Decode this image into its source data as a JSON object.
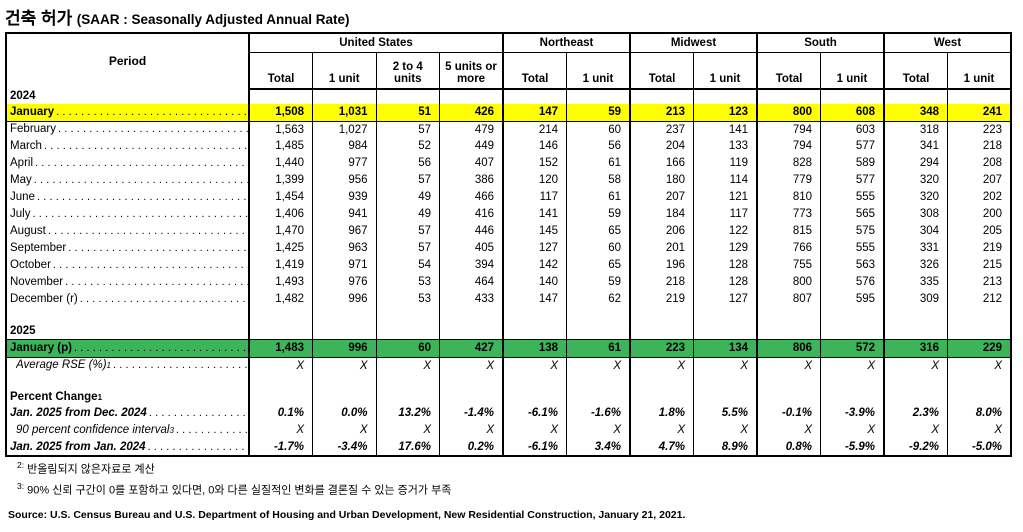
{
  "title": {
    "korean": "건축 허가",
    "english": "(SAAR : Seasonally Adjusted Annual Rate)"
  },
  "colors": {
    "highlight_yellow": "#FFFF00",
    "highlight_green": "#3CB45A"
  },
  "table": {
    "period_header": "Period",
    "groups": [
      {
        "label": "United States",
        "cols": [
          "Total",
          "1 unit",
          "2 to 4 units",
          "5 units or more"
        ]
      },
      {
        "label": "Northeast",
        "cols": [
          "Total",
          "1 unit"
        ]
      },
      {
        "label": "Midwest",
        "cols": [
          "Total",
          "1 unit"
        ]
      },
      {
        "label": "South",
        "cols": [
          "Total",
          "1 unit"
        ]
      },
      {
        "label": "West",
        "cols": [
          "Total",
          "1 unit"
        ]
      }
    ],
    "rows": [
      {
        "type": "section",
        "label": "2024"
      },
      {
        "type": "data",
        "label": "January",
        "dots": true,
        "highlight": "yellow",
        "values": [
          "1,508",
          "1,031",
          "51",
          "426",
          "147",
          "59",
          "213",
          "123",
          "800",
          "608",
          "348",
          "241"
        ]
      },
      {
        "type": "data",
        "label": "February",
        "dots": true,
        "values": [
          "1,563",
          "1,027",
          "57",
          "479",
          "214",
          "60",
          "237",
          "141",
          "794",
          "603",
          "318",
          "223"
        ]
      },
      {
        "type": "data",
        "label": "March",
        "dots": true,
        "values": [
          "1,485",
          "984",
          "52",
          "449",
          "146",
          "56",
          "204",
          "133",
          "794",
          "577",
          "341",
          "218"
        ]
      },
      {
        "type": "data",
        "label": "April",
        "dots": true,
        "values": [
          "1,440",
          "977",
          "56",
          "407",
          "152",
          "61",
          "166",
          "119",
          "828",
          "589",
          "294",
          "208"
        ]
      },
      {
        "type": "data",
        "label": "May",
        "dots": true,
        "values": [
          "1,399",
          "956",
          "57",
          "386",
          "120",
          "58",
          "180",
          "114",
          "779",
          "577",
          "320",
          "207"
        ]
      },
      {
        "type": "data",
        "label": "June",
        "dots": true,
        "values": [
          "1,454",
          "939",
          "49",
          "466",
          "117",
          "61",
          "207",
          "121",
          "810",
          "555",
          "320",
          "202"
        ]
      },
      {
        "type": "data",
        "label": "July",
        "dots": true,
        "values": [
          "1,406",
          "941",
          "49",
          "416",
          "141",
          "59",
          "184",
          "117",
          "773",
          "565",
          "308",
          "200"
        ]
      },
      {
        "type": "data",
        "label": "August",
        "dots": true,
        "values": [
          "1,470",
          "967",
          "57",
          "446",
          "145",
          "65",
          "206",
          "122",
          "815",
          "575",
          "304",
          "205"
        ]
      },
      {
        "type": "data",
        "label": "September",
        "dots": true,
        "values": [
          "1,425",
          "963",
          "57",
          "405",
          "127",
          "60",
          "201",
          "129",
          "766",
          "555",
          "331",
          "219"
        ]
      },
      {
        "type": "data",
        "label": "October",
        "dots": true,
        "values": [
          "1,419",
          "971",
          "54",
          "394",
          "142",
          "65",
          "196",
          "128",
          "755",
          "563",
          "326",
          "215"
        ]
      },
      {
        "type": "data",
        "label": "November",
        "dots": true,
        "values": [
          "1,493",
          "976",
          "53",
          "464",
          "140",
          "59",
          "218",
          "128",
          "800",
          "576",
          "335",
          "213"
        ]
      },
      {
        "type": "data",
        "label": "December (r)",
        "dots": true,
        "values": [
          "1,482",
          "996",
          "53",
          "433",
          "147",
          "62",
          "219",
          "127",
          "807",
          "595",
          "309",
          "212"
        ]
      },
      {
        "type": "spacer"
      },
      {
        "type": "section",
        "label": "2025"
      },
      {
        "type": "data",
        "label": "January (p)",
        "dots": true,
        "highlight": "green",
        "values": [
          "1,483",
          "996",
          "60",
          "427",
          "138",
          "61",
          "223",
          "134",
          "806",
          "572",
          "316",
          "229"
        ]
      },
      {
        "type": "data",
        "label": "Average RSE (%)",
        "sup": "1",
        "dots": true,
        "style": "italic",
        "indent": true,
        "values": [
          "X",
          "X",
          "X",
          "X",
          "X",
          "X",
          "X",
          "X",
          "X",
          "X",
          "X",
          "X"
        ]
      },
      {
        "type": "spacer"
      },
      {
        "type": "label",
        "label": "Percent Change",
        "sup": "1"
      },
      {
        "type": "data",
        "label": "Jan. 2025 from Dec. 2024",
        "dots": true,
        "style": "bolditalic",
        "values": [
          "0.1%",
          "0.0%",
          "13.2%",
          "-1.4%",
          "-6.1%",
          "-1.6%",
          "1.8%",
          "5.5%",
          "-0.1%",
          "-3.9%",
          "2.3%",
          "8.0%"
        ]
      },
      {
        "type": "data",
        "label": "90 percent confidence interval",
        "sup": "3",
        "dots": true,
        "style": "italic",
        "indent": true,
        "values": [
          "X",
          "X",
          "X",
          "X",
          "X",
          "X",
          "X",
          "X",
          "X",
          "X",
          "X",
          "X"
        ]
      },
      {
        "type": "data",
        "label": "Jan. 2025 from Jan. 2024",
        "dots": true,
        "style": "bolditalic",
        "values": [
          "-1.7%",
          "-3.4%",
          "17.6%",
          "0.2%",
          "-6.1%",
          "3.4%",
          "4.7%",
          "8.9%",
          "0.8%",
          "-5.9%",
          "-9.2%",
          "-5.0%"
        ]
      }
    ]
  },
  "footnotes": [
    {
      "marker": "2:",
      "text": "반올림되지 않은자료로 계산"
    },
    {
      "marker": "3:",
      "text": "90% 신뢰 구간이 0를 포함하고 있다면, 0와 다른 실질적인 변화를 결론질 수 있는 증거가 부족"
    }
  ],
  "source": "Source: U.S. Census Bureau and U.S. Department of Housing and Urban Development, New Residential Construction, January 21, 2021."
}
